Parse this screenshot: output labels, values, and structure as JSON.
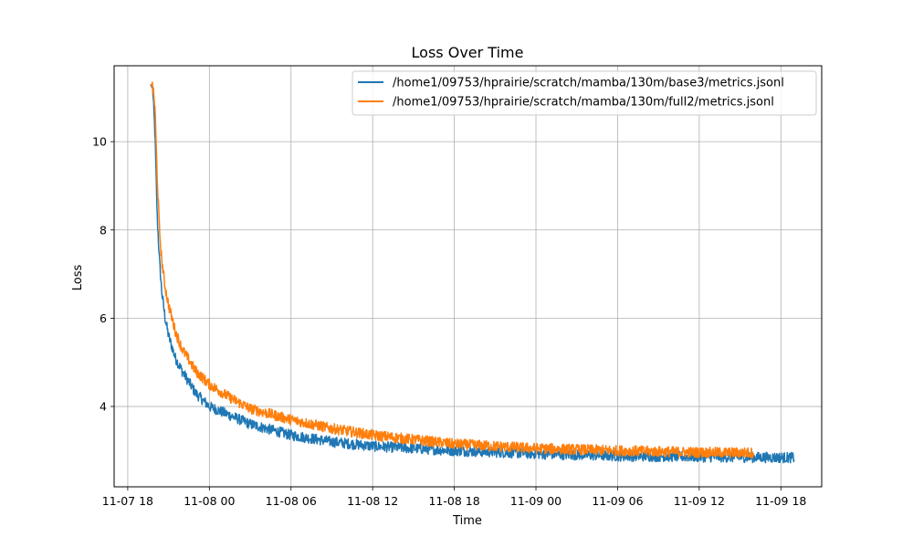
{
  "chart_data": {
    "type": "line",
    "title": "Loss Over Time",
    "xlabel": "Time",
    "ylabel": "Loss",
    "x_type": "datetime",
    "xlim": [
      "2023-11-07T17:00",
      "2023-11-09T21:00"
    ],
    "ylim": [
      2.18,
      11.72
    ],
    "x_ticks": [
      {
        "value": "2023-11-07T18:00",
        "label": "11-07 18"
      },
      {
        "value": "2023-11-08T00:00",
        "label": "11-08 00"
      },
      {
        "value": "2023-11-08T06:00",
        "label": "11-08 06"
      },
      {
        "value": "2023-11-08T12:00",
        "label": "11-08 12"
      },
      {
        "value": "2023-11-08T18:00",
        "label": "11-08 18"
      },
      {
        "value": "2023-11-09T00:00",
        "label": "11-09 00"
      },
      {
        "value": "2023-11-09T06:00",
        "label": "11-09 06"
      },
      {
        "value": "2023-11-09T12:00",
        "label": "11-09 12"
      },
      {
        "value": "2023-11-09T18:00",
        "label": "11-09 18"
      }
    ],
    "y_ticks": [
      {
        "value": 4,
        "label": "4"
      },
      {
        "value": 6,
        "label": "6"
      },
      {
        "value": 8,
        "label": "8"
      },
      {
        "value": 10,
        "label": "10"
      }
    ],
    "grid": true,
    "legend_position": "top-right",
    "series": [
      {
        "name": "/home1/09753/hprairie/scratch/mamba/130m/base3/metrics.jsonl",
        "color": "#1f77b4",
        "noise": 0.12,
        "points": [
          {
            "x": "2023-11-07T19:40",
            "y": 11.3
          },
          {
            "x": "2023-11-07T19:50",
            "y": 11.2
          },
          {
            "x": "2023-11-07T20:00",
            "y": 10.2
          },
          {
            "x": "2023-11-07T20:10",
            "y": 8.3
          },
          {
            "x": "2023-11-07T20:20",
            "y": 7.3
          },
          {
            "x": "2023-11-07T20:30",
            "y": 6.6
          },
          {
            "x": "2023-11-07T20:45",
            "y": 6.0
          },
          {
            "x": "2023-11-07T21:00",
            "y": 5.6
          },
          {
            "x": "2023-11-07T21:30",
            "y": 5.1
          },
          {
            "x": "2023-11-07T22:00",
            "y": 4.8
          },
          {
            "x": "2023-11-07T23:00",
            "y": 4.3
          },
          {
            "x": "2023-11-08T00:00",
            "y": 4.0
          },
          {
            "x": "2023-11-08T01:30",
            "y": 3.8
          },
          {
            "x": "2023-11-08T03:00",
            "y": 3.6
          },
          {
            "x": "2023-11-08T06:00",
            "y": 3.35
          },
          {
            "x": "2023-11-08T09:00",
            "y": 3.2
          },
          {
            "x": "2023-11-08T12:00",
            "y": 3.1
          },
          {
            "x": "2023-11-08T18:00",
            "y": 3.0
          },
          {
            "x": "2023-11-09T00:00",
            "y": 2.93
          },
          {
            "x": "2023-11-09T06:00",
            "y": 2.88
          },
          {
            "x": "2023-11-09T12:00",
            "y": 2.86
          },
          {
            "x": "2023-11-09T19:00",
            "y": 2.84
          }
        ]
      },
      {
        "name": "/home1/09753/hprairie/scratch/mamba/130m/full2/metrics.jsonl",
        "color": "#ff7f0e",
        "noise": 0.12,
        "points": [
          {
            "x": "2023-11-07T19:40",
            "y": 11.3
          },
          {
            "x": "2023-11-07T19:50",
            "y": 11.25
          },
          {
            "x": "2023-11-07T20:00",
            "y": 10.8
          },
          {
            "x": "2023-11-07T20:10",
            "y": 9.2
          },
          {
            "x": "2023-11-07T20:20",
            "y": 8.0
          },
          {
            "x": "2023-11-07T20:30",
            "y": 7.3
          },
          {
            "x": "2023-11-07T20:45",
            "y": 6.7
          },
          {
            "x": "2023-11-07T21:00",
            "y": 6.3
          },
          {
            "x": "2023-11-07T21:30",
            "y": 5.7
          },
          {
            "x": "2023-11-07T22:00",
            "y": 5.3
          },
          {
            "x": "2023-11-07T23:00",
            "y": 4.8
          },
          {
            "x": "2023-11-08T00:00",
            "y": 4.5
          },
          {
            "x": "2023-11-08T01:30",
            "y": 4.2
          },
          {
            "x": "2023-11-08T03:00",
            "y": 3.95
          },
          {
            "x": "2023-11-08T06:00",
            "y": 3.7
          },
          {
            "x": "2023-11-08T09:00",
            "y": 3.5
          },
          {
            "x": "2023-11-08T12:00",
            "y": 3.35
          },
          {
            "x": "2023-11-08T18:00",
            "y": 3.15
          },
          {
            "x": "2023-11-09T00:00",
            "y": 3.05
          },
          {
            "x": "2023-11-09T06:00",
            "y": 3.0
          },
          {
            "x": "2023-11-09T12:00",
            "y": 2.96
          },
          {
            "x": "2023-11-09T16:00",
            "y": 2.95
          }
        ]
      }
    ]
  }
}
